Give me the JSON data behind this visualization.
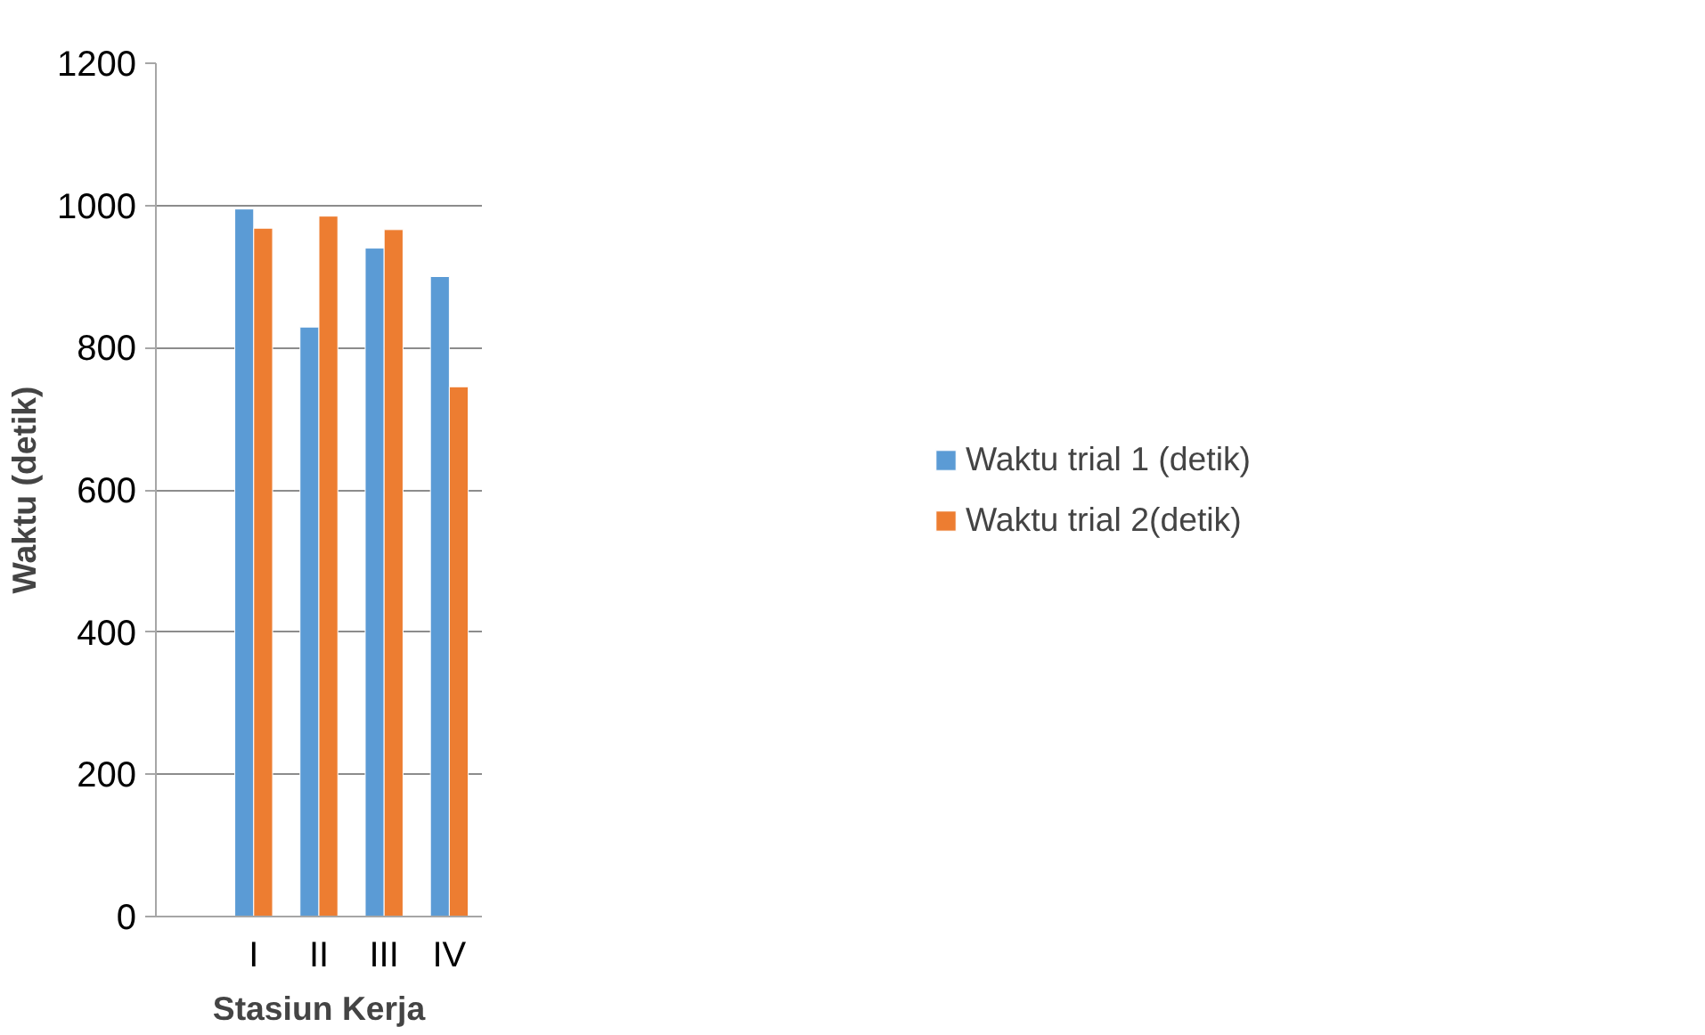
{
  "chart_data": {
    "type": "bar",
    "xlabel": "Stasiun Kerja",
    "ylabel": "Waktu (detik)",
    "categories": [
      null,
      "I",
      "II",
      "III",
      "IV"
    ],
    "series": [
      {
        "name": "Waktu trial 1 (detik)",
        "color": "#5b9bd5",
        "values": [
          null,
          995,
          829,
          940,
          900
        ]
      },
      {
        "name": "Waktu trial 2(detik)",
        "color": "#ed7d31",
        "values": [
          null,
          968,
          985,
          966,
          745
        ]
      }
    ],
    "ylim": [
      0,
      1200
    ],
    "yticks": [
      0,
      200,
      400,
      600,
      800,
      1000,
      1200
    ],
    "grid": "y",
    "legend": "right"
  }
}
